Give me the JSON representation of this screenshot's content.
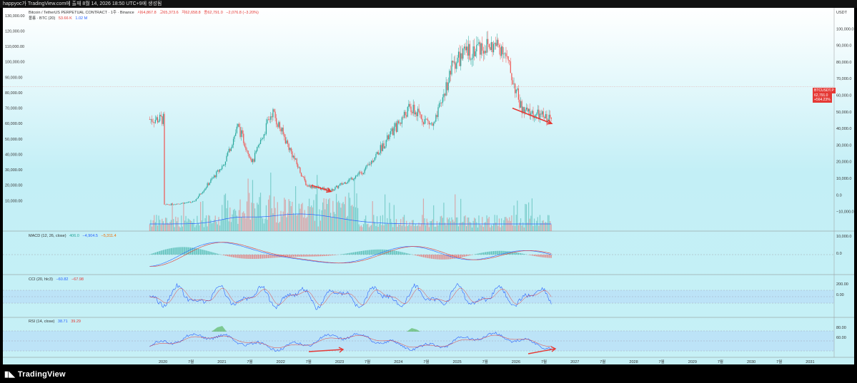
{
  "window": {
    "title": "happyoc가 TradingView.com에 출재 8월 14, 2026 18:50 UTC+9에 생성됨"
  },
  "legend": {
    "symbol": "Bitcoin / TetherUS PERPETUAL CONTRACT · 1주 · Binance",
    "open": "시64,867.8",
    "high": "고65,373.6",
    "low": "저62,658.8",
    "close": "종62,791.0",
    "change": "−2,076.8 (−3.20%)",
    "volume_label": "볼륨 · BTC (20)",
    "volume_value": "53.66 K",
    "volume_ma": "1.02 M"
  },
  "macd": {
    "label": "MACD (12, 26, close)",
    "v1": "406.0",
    "v2": "−4,904.5",
    "v3": "−5,311.4"
  },
  "cci": {
    "label": "CCI (20, hlc3)",
    "v1": "−60.82",
    "v2": "−67.98"
  },
  "rsi": {
    "label": "RSI (14, close)",
    "v1": "38.71",
    "v2": "39.29"
  },
  "price_axis": {
    "main_left": [
      "130,000.00",
      "120,000.00",
      "110,000.00",
      "100,000.00",
      "90,000.00",
      "80,000.00",
      "70,000.00",
      "60,000.00",
      "50,000.00",
      "40,000.00",
      "30,000.00",
      "20,000.00",
      "10,000.00"
    ],
    "main_right": [
      "USDT",
      "100,000.0",
      "90,000.0",
      "80,000.0",
      "70,000.0",
      "60,000.0",
      "50,000.0",
      "40,000.0",
      "30,000.0",
      "20,000.0",
      "10,000.0",
      "0.0",
      "−10,000.0"
    ],
    "macd_right": [
      "10,000.0",
      "0.0"
    ],
    "cci_right": [
      "200.00",
      "0.00"
    ],
    "rsi_right": [
      "80.00",
      "60.00"
    ]
  },
  "price_tag": {
    "symbol": "BTCUSDT.P",
    "price": "62,791.0",
    "pct": "+564.23%"
  },
  "time_axis": [
    "2020",
    "7월",
    "2021",
    "7월",
    "2022",
    "7월",
    "2023",
    "7월",
    "2024",
    "7월",
    "2025",
    "7월",
    "2026",
    "7월",
    "2027",
    "7월",
    "2028",
    "7월",
    "2029",
    "7월",
    "2030",
    "7월",
    "2031"
  ],
  "footer": {
    "brand": "TradingView"
  },
  "colors": {
    "up": "#26a69a",
    "down": "#ef5350",
    "arrow": "#e53935",
    "volume_ma": "#2962ff",
    "signal": "#e53935"
  },
  "chart_data": {
    "type": "candlestick",
    "interval": "1주",
    "x": [
      "2020-01",
      "2020-07",
      "2021-01",
      "2021-04",
      "2021-07",
      "2021-11",
      "2022-06",
      "2022-11",
      "2023-06",
      "2024-03",
      "2024-08",
      "2024-12",
      "2025-05",
      "2025-10",
      "2026-02",
      "2026-08"
    ],
    "close": [
      7200,
      9200,
      33000,
      58000,
      35000,
      68000,
      20000,
      16500,
      30000,
      70000,
      58000,
      100000,
      110000,
      110000,
      68000,
      62791
    ],
    "ylim_left": [
      0,
      135000
    ],
    "arrows": [
      {
        "from": [
          "2022-07",
          20000
        ],
        "to": [
          "2022-11",
          16000
        ]
      },
      {
        "from": [
          "2025-12",
          70000
        ],
        "to": [
          "2026-08",
          60000
        ]
      }
    ]
  }
}
